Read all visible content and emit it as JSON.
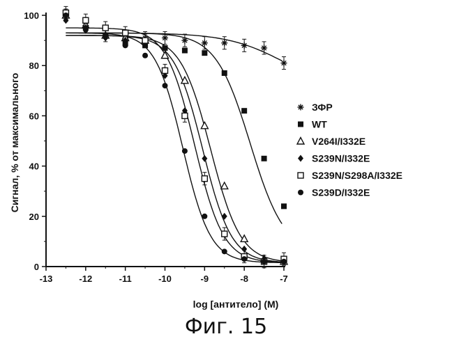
{
  "caption": "Фиг. 15",
  "chart_data": {
    "type": "scatter",
    "xlabel": "log [антитело] (М)",
    "ylabel": "Сигнал, % от максимального",
    "xlim": [
      -13,
      -7
    ],
    "ylim": [
      0,
      100
    ],
    "xticks": [
      -13,
      -12,
      -11,
      -10,
      -9,
      -8,
      -7
    ],
    "yticks": [
      0,
      20,
      40,
      60,
      80,
      100
    ],
    "grid": false,
    "legend_position": "right",
    "series": [
      {
        "name": "ЗФР",
        "marker": "asterisk",
        "x": [
          -12.5,
          -12,
          -11.5,
          -11,
          -10.5,
          -10,
          -9.5,
          -9,
          -8.5,
          -8,
          -7.5,
          -7
        ],
        "y": [
          100,
          96,
          92,
          91,
          91,
          91,
          90,
          89,
          89,
          88,
          87,
          81
        ],
        "fit": {
          "top": 93,
          "bottom": 70,
          "logec50": -7,
          "hill": 0.6
        }
      },
      {
        "name": "WT",
        "marker": "filled-square",
        "x": [
          -12.5,
          -12,
          -11.5,
          -11,
          -10.5,
          -10,
          -9.5,
          -9,
          -8.5,
          -8,
          -7.5,
          -7
        ],
        "y": [
          100,
          95,
          92,
          89,
          88,
          87,
          86,
          85,
          77,
          62,
          43,
          24
        ],
        "fit": {
          "top": 93,
          "bottom": 5,
          "logec50": -7.85,
          "hill": 1.0
        }
      },
      {
        "name": "V264I/I332E",
        "marker": "open-triangle",
        "x": [
          -12.5,
          -12,
          -11.5,
          -11,
          -10.5,
          -10,
          -9.5,
          -9,
          -8.5,
          -8,
          -7.5,
          -7
        ],
        "y": [
          100,
          96,
          92,
          91,
          90,
          84,
          74,
          56,
          32,
          11,
          3,
          2
        ],
        "fit": {
          "top": 92,
          "bottom": 1.5,
          "logec50": -8.85,
          "hill": 1.15
        }
      },
      {
        "name": "S239N/I332E",
        "marker": "filled-diamond",
        "x": [
          -12.5,
          -12,
          -11.5,
          -11,
          -10.5,
          -10,
          -9.5,
          -9,
          -8.5,
          -8,
          -7.5,
          -7
        ],
        "y": [
          98,
          94,
          91,
          90,
          89,
          76,
          62,
          43,
          20,
          7,
          3,
          2
        ],
        "fit": {
          "top": 92,
          "bottom": 1.5,
          "logec50": -9.05,
          "hill": 1.2
        }
      },
      {
        "name": "S239N/S298A/I332E",
        "marker": "open-square",
        "x": [
          -12.5,
          -12,
          -11.5,
          -11,
          -10.5,
          -10,
          -9.5,
          -9,
          -8.5,
          -8,
          -7.5,
          -7
        ],
        "y": [
          101,
          98,
          95,
          93,
          90,
          78,
          60,
          35,
          13,
          4,
          2,
          3
        ],
        "fit": {
          "top": 95,
          "bottom": 1.5,
          "logec50": -9.25,
          "hill": 1.2
        }
      },
      {
        "name": "S239D/I332E",
        "marker": "filled-circle",
        "x": [
          -12.5,
          -12,
          -11.5,
          -11,
          -10.5,
          -10,
          -9.5,
          -9,
          -8.5,
          -8,
          -7.5,
          -7
        ],
        "y": [
          100,
          95,
          92,
          88,
          84,
          72,
          46,
          20,
          6,
          3,
          2,
          2
        ],
        "fit": {
          "top": 93,
          "bottom": 1.5,
          "logec50": -9.55,
          "hill": 1.25
        }
      }
    ]
  }
}
